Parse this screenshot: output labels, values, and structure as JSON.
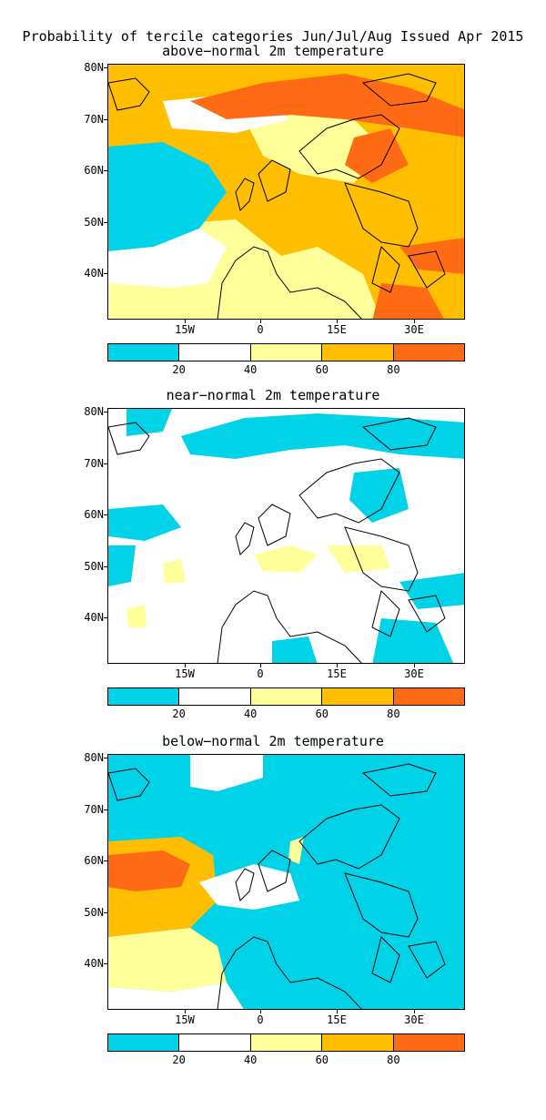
{
  "figure": {
    "title": "Probability of tercile categories Jun/Jul/Aug Issued Apr 2015"
  },
  "panels": [
    {
      "subtitle": "above−normal 2m temperature",
      "variant": "above"
    },
    {
      "subtitle": "near−normal 2m temperature",
      "variant": "near"
    },
    {
      "subtitle": "below−normal 2m temperature",
      "variant": "below"
    }
  ],
  "axes": {
    "lat_labels": [
      "80N",
      "70N",
      "60N",
      "50N",
      "40N"
    ],
    "lon_labels": [
      "15W",
      "0",
      "15E",
      "30E"
    ]
  },
  "colorbar": {
    "labels": [
      "20",
      "40",
      "60",
      "80"
    ],
    "colors": [
      "#00d2e8",
      "#ffffff",
      "#ffff99",
      "#ffbf00",
      "#ff6a14"
    ],
    "ranges": [
      "0-20",
      "20-40",
      "40-60",
      "60-80",
      "80-100"
    ]
  }
}
